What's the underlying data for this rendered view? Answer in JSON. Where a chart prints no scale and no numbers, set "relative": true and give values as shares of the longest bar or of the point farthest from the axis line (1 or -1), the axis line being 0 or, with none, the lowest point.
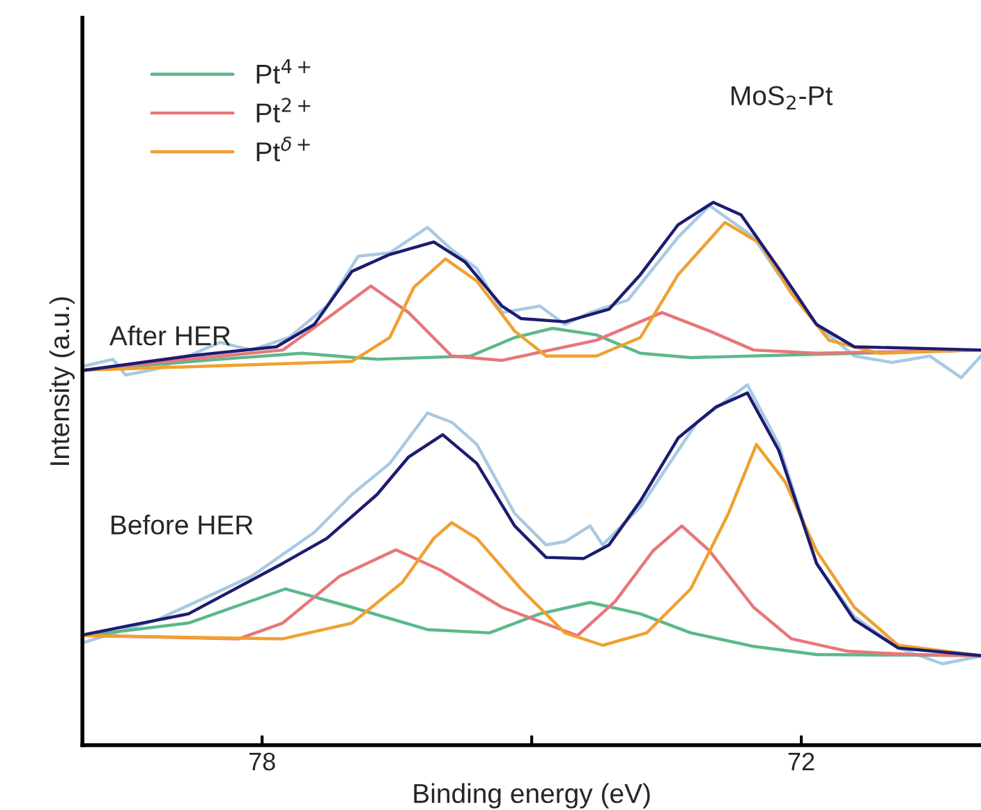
{
  "chart_data": {
    "type": "line",
    "relative": true,
    "xlabel": "Binding energy (eV)",
    "ylabel": "Intensity (a.u.)",
    "xlim": [
      80,
      70
    ],
    "xticks": [
      78,
      {
        "value": 75,
        "label": null
      },
      72
    ],
    "annotations": [
      "MoS$_{2}$-Pt",
      "After HER",
      "Before HER"
    ],
    "legend": "top left",
    "grid": false,
    "marker": "none",
    "line_style": "solid",
    "series": [
      {
        "color": "#a9c9e2",
        "x": [
          79.97,
          79.66,
          79.52,
          79.17,
          78.82,
          78.47,
          78.12,
          77.7,
          77.28,
          76.93,
          76.58,
          76.16,
          75.89,
          75.61,
          75.33,
          74.91,
          74.63,
          74.35,
          73.93,
          73.65,
          73.37,
          73.02,
          72.53,
          72.25,
          71.83,
          71.41,
          70.99,
          70.57,
          70.22,
          70.0
        ],
        "values": [
          0.699,
          0.711,
          0.682,
          0.693,
          0.717,
          0.742,
          0.728,
          0.751,
          0.809,
          0.901,
          0.907,
          0.954,
          0.913,
          0.878,
          0.797,
          0.809,
          0.775,
          0.797,
          0.82,
          0.878,
          0.936,
          0.994,
          0.936,
          0.867,
          0.775,
          0.717,
          0.705,
          0.717,
          0.677,
          0.717
        ]
      },
      {
        "color": "#a9c9e2",
        "x": [
          79.97,
          79.17,
          78.12,
          77.42,
          77.0,
          76.58,
          76.16,
          75.89,
          75.61,
          75.19,
          74.84,
          74.63,
          74.35,
          74.21,
          73.79,
          73.16,
          72.6,
          72.25,
          71.83,
          71.41,
          70.92,
          70.43,
          70.0
        ],
        "values": [
          0.19,
          0.231,
          0.311,
          0.392,
          0.462,
          0.519,
          0.612,
          0.595,
          0.554,
          0.427,
          0.369,
          0.375,
          0.404,
          0.369,
          0.439,
          0.595,
          0.664,
          0.554,
          0.335,
          0.237,
          0.179,
          0.15,
          0.164
        ]
      },
      {
        "name": "Pt$^{4+}$",
        "color": "#5cb88a",
        "x": [
          79.97,
          78.47,
          77.56,
          76.72,
          75.68,
          75.19,
          74.77,
          74.28,
          73.79,
          73.23,
          70.0
        ],
        "values": [
          0.691,
          0.711,
          0.722,
          0.711,
          0.717,
          0.751,
          0.768,
          0.756,
          0.722,
          0.714,
          0.728
        ]
      },
      {
        "name": "Pt$^{2+}$",
        "color": "#e8767a",
        "x": [
          79.97,
          78.82,
          77.77,
          77.28,
          76.79,
          76.37,
          75.89,
          75.33,
          74.28,
          73.55,
          73.02,
          72.53,
          71.83,
          70.0
        ],
        "values": [
          0.691,
          0.711,
          0.728,
          0.786,
          0.846,
          0.797,
          0.717,
          0.709,
          0.746,
          0.797,
          0.763,
          0.728,
          0.722,
          0.728
        ]
      },
      {
        "name": "Pt$^{δ+}$",
        "color": "#f0a030",
        "x": [
          79.97,
          77.0,
          76.58,
          76.31,
          75.96,
          75.61,
          75.19,
          74.84,
          74.28,
          73.79,
          73.37,
          72.85,
          72.46,
          72.11,
          71.69,
          71.13,
          70.0
        ],
        "values": [
          0.691,
          0.707,
          0.751,
          0.844,
          0.896,
          0.855,
          0.763,
          0.717,
          0.717,
          0.751,
          0.867,
          0.963,
          0.925,
          0.832,
          0.746,
          0.722,
          0.728
        ]
      },
      {
        "color": "#5cb88a",
        "x": [
          79.97,
          78.82,
          77.74,
          77.0,
          76.16,
          75.47,
          74.91,
          74.35,
          73.79,
          73.23,
          72.53,
          71.83,
          70.0
        ],
        "values": [
          0.202,
          0.225,
          0.288,
          0.254,
          0.213,
          0.207,
          0.242,
          0.263,
          0.242,
          0.207,
          0.182,
          0.167,
          0.165
        ]
      },
      {
        "color": "#e8767a",
        "x": [
          79.97,
          78.26,
          77.77,
          77.14,
          76.51,
          76.02,
          75.33,
          74.77,
          74.49,
          74.07,
          73.65,
          73.33,
          73.02,
          72.53,
          72.11,
          71.48,
          70.78,
          70.0
        ],
        "values": [
          0.202,
          0.196,
          0.225,
          0.311,
          0.36,
          0.323,
          0.254,
          0.219,
          0.202,
          0.265,
          0.358,
          0.404,
          0.358,
          0.254,
          0.196,
          0.173,
          0.167,
          0.165
        ]
      },
      {
        "color": "#f0a030",
        "x": [
          79.97,
          77.77,
          77.0,
          76.44,
          76.09,
          75.89,
          75.61,
          75.12,
          74.63,
          74.21,
          73.72,
          73.23,
          72.81,
          72.5,
          72.18,
          71.83,
          71.41,
          70.92,
          70.0
        ],
        "values": [
          0.202,
          0.196,
          0.225,
          0.3,
          0.381,
          0.41,
          0.381,
          0.288,
          0.207,
          0.184,
          0.207,
          0.288,
          0.427,
          0.554,
          0.485,
          0.358,
          0.254,
          0.184,
          0.165
        ]
      },
      {
        "color": "#1c1c70",
        "x": [
          79.97,
          78.82,
          77.84,
          77.42,
          77.0,
          76.58,
          76.09,
          75.74,
          75.33,
          75.12,
          74.63,
          74.14,
          73.79,
          73.37,
          72.98,
          72.67,
          72.25,
          71.83,
          71.41,
          70.0
        ],
        "values": [
          0.691,
          0.717,
          0.734,
          0.775,
          0.873,
          0.904,
          0.927,
          0.89,
          0.809,
          0.786,
          0.78,
          0.803,
          0.867,
          0.959,
          1.0,
          0.977,
          0.878,
          0.775,
          0.734,
          0.728
        ]
      },
      {
        "color": "#1c1c70",
        "x": [
          79.97,
          78.82,
          77.77,
          77.28,
          76.72,
          76.37,
          75.99,
          75.61,
          75.19,
          74.84,
          74.42,
          74.14,
          73.79,
          73.37,
          72.95,
          72.6,
          72.25,
          71.83,
          71.41,
          70.92,
          70.0
        ],
        "values": [
          0.204,
          0.242,
          0.335,
          0.381,
          0.462,
          0.531,
          0.572,
          0.519,
          0.404,
          0.346,
          0.344,
          0.369,
          0.45,
          0.566,
          0.623,
          0.649,
          0.543,
          0.335,
          0.231,
          0.179,
          0.165
        ]
      }
    ]
  }
}
